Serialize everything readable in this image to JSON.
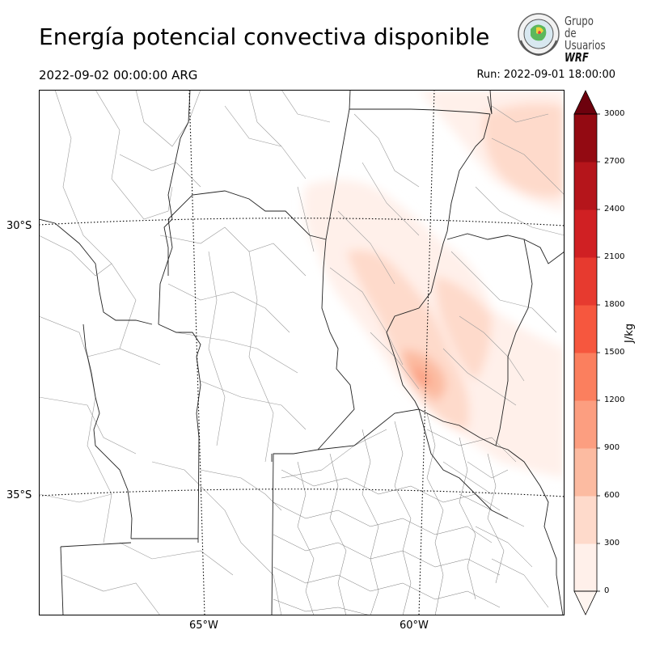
{
  "header": {
    "title": "Energía potencial convectiva disponible",
    "valid_time": "2022-09-02 00:00:00 ARG",
    "run_time": "Run: 2022-09-01 18:00:00"
  },
  "logo": {
    "line1": "Grupo de",
    "line2": "Usuarios",
    "line3": "WRF"
  },
  "map": {
    "lat_labels": [
      "30°S",
      "35°S"
    ],
    "lon_labels": [
      "65°W",
      "60°W"
    ]
  },
  "colorbar": {
    "unit": "J/kg",
    "ticks": [
      "0",
      "300",
      "600",
      "900",
      "1200",
      "1500",
      "1800",
      "2100",
      "2400",
      "2700",
      "3000"
    ],
    "colors": [
      "#fff0ea",
      "#fedacb",
      "#fcbba1",
      "#fc9e80",
      "#fb7f5e",
      "#f6573e",
      "#e73a2f",
      "#d02023",
      "#b5151b",
      "#930a12",
      "#6d010d"
    ],
    "min": 0,
    "max": 3000
  }
}
